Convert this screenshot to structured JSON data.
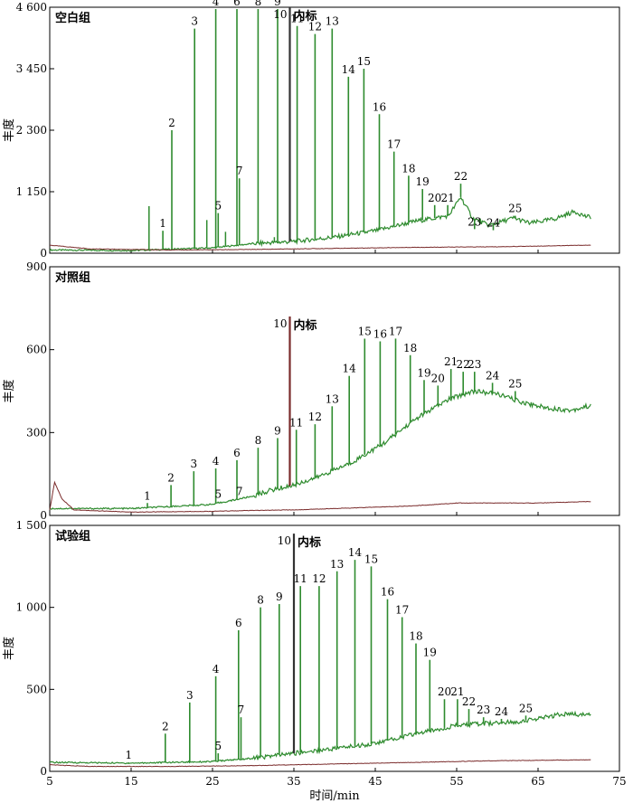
{
  "chart_data": [
    {
      "type": "line",
      "title": "空白组",
      "ylabel": "丰度",
      "xlim": [
        5,
        75
      ],
      "ylim": [
        0,
        4600
      ],
      "yticks": [
        "0",
        "1 150",
        "2 300",
        "3 450",
        "4 600"
      ],
      "yticks_values": [
        0,
        1150,
        2300,
        3450,
        4600
      ],
      "internal_standard": {
        "peak_id": "10",
        "label": "内标",
        "x": 34.5,
        "y": 4600
      },
      "peaks": [
        {
          "id": "1",
          "x": 18.9,
          "y": 420
        },
        {
          "id": "2",
          "x": 20.0,
          "y": 2300
        },
        {
          "id": "3",
          "x": 22.8,
          "y": 4200
        },
        {
          "id": "4",
          "x": 25.4,
          "y": 4800
        },
        {
          "id": "5",
          "x": 25.7,
          "y": 750
        },
        {
          "id": "6",
          "x": 28.0,
          "y": 4850
        },
        {
          "id": "7",
          "x": 28.3,
          "y": 1400
        },
        {
          "id": "8",
          "x": 30.6,
          "y": 4650
        },
        {
          "id": "9",
          "x": 33.0,
          "y": 4700
        },
        {
          "id": "11",
          "x": 35.4,
          "y": 4250
        },
        {
          "id": "12",
          "x": 37.6,
          "y": 4100
        },
        {
          "id": "13",
          "x": 39.7,
          "y": 4200
        },
        {
          "id": "14",
          "x": 41.7,
          "y": 3300
        },
        {
          "id": "15",
          "x": 43.6,
          "y": 3450
        },
        {
          "id": "16",
          "x": 45.5,
          "y": 2600
        },
        {
          "id": "17",
          "x": 47.3,
          "y": 1900
        },
        {
          "id": "18",
          "x": 49.1,
          "y": 1450
        },
        {
          "id": "19",
          "x": 50.8,
          "y": 1200
        },
        {
          "id": "20",
          "x": 52.3,
          "y": 900
        },
        {
          "id": "21",
          "x": 53.9,
          "y": 900
        },
        {
          "id": "22",
          "x": 55.5,
          "y": 1300
        },
        {
          "id": "23",
          "x": 57.2,
          "y": 450
        },
        {
          "id": "24",
          "x": 59.5,
          "y": 430
        },
        {
          "id": "25",
          "x": 62.2,
          "y": 700
        }
      ],
      "extra_peaks": [
        {
          "x": 17.2,
          "y": 880
        },
        {
          "x": 24.3,
          "y": 620
        },
        {
          "x": 26.6,
          "y": 400
        },
        {
          "x": 32.6,
          "y": 300
        }
      ],
      "series": [
        {
          "color": "#2e8b2e",
          "baseline": [
            [
              5,
              60
            ],
            [
              15,
              50
            ],
            [
              25,
              100
            ],
            [
              30,
              180
            ],
            [
              35,
              220
            ],
            [
              40,
              300
            ],
            [
              45,
              420
            ],
            [
              50,
              600
            ],
            [
              54,
              700
            ],
            [
              55.5,
              1050
            ],
            [
              57,
              650
            ],
            [
              59,
              520
            ],
            [
              62,
              660
            ],
            [
              64,
              560
            ],
            [
              67,
              640
            ],
            [
              69.5,
              780
            ],
            [
              71,
              680
            ]
          ]
        },
        {
          "color": "#7a2b2b",
          "baseline": [
            [
              5,
              150
            ],
            [
              10,
              80
            ],
            [
              20,
              60
            ],
            [
              30,
              70
            ],
            [
              40,
              90
            ],
            [
              50,
              110
            ],
            [
              60,
              120
            ],
            [
              71,
              150
            ]
          ]
        }
      ]
    },
    {
      "type": "line",
      "title": "对照组",
      "ylabel": "丰度",
      "xlim": [
        5,
        75
      ],
      "ylim": [
        0,
        900
      ],
      "yticks": [
        "0",
        "300",
        "600",
        "900"
      ],
      "yticks_values": [
        0,
        300,
        600,
        900
      ],
      "internal_standard": {
        "peak_id": "10",
        "label": "内标",
        "x": 34.5,
        "y": 720
      },
      "peaks": [
        {
          "id": "1",
          "x": 17.0,
          "y": 45
        },
        {
          "id": "2",
          "x": 19.9,
          "y": 110
        },
        {
          "id": "3",
          "x": 22.7,
          "y": 160
        },
        {
          "id": "4",
          "x": 25.4,
          "y": 170
        },
        {
          "id": "5",
          "x": 25.7,
          "y": 50
        },
        {
          "id": "6",
          "x": 28.0,
          "y": 200
        },
        {
          "id": "7",
          "x": 28.3,
          "y": 60
        },
        {
          "id": "8",
          "x": 30.6,
          "y": 245
        },
        {
          "id": "9",
          "x": 33.0,
          "y": 280
        },
        {
          "id": "11",
          "x": 35.3,
          "y": 310
        },
        {
          "id": "12",
          "x": 37.6,
          "y": 330
        },
        {
          "id": "13",
          "x": 39.7,
          "y": 395
        },
        {
          "id": "14",
          "x": 41.8,
          "y": 505
        },
        {
          "id": "15",
          "x": 43.7,
          "y": 640
        },
        {
          "id": "16",
          "x": 45.6,
          "y": 630
        },
        {
          "id": "17",
          "x": 47.5,
          "y": 640
        },
        {
          "id": "18",
          "x": 49.3,
          "y": 580
        },
        {
          "id": "19",
          "x": 51.0,
          "y": 490
        },
        {
          "id": "20",
          "x": 52.7,
          "y": 470
        },
        {
          "id": "21",
          "x": 54.3,
          "y": 530
        },
        {
          "id": "22",
          "x": 55.8,
          "y": 520
        },
        {
          "id": "23",
          "x": 57.2,
          "y": 520
        },
        {
          "id": "24",
          "x": 59.4,
          "y": 480
        },
        {
          "id": "25",
          "x": 62.2,
          "y": 450
        }
      ],
      "extra_peaks": [],
      "series": [
        {
          "color": "#2e8b2e",
          "baseline": [
            [
              5,
              25
            ],
            [
              15,
              25
            ],
            [
              25,
              40
            ],
            [
              30,
              70
            ],
            [
              32,
              90
            ],
            [
              35,
              110
            ],
            [
              38,
              140
            ],
            [
              42,
              190
            ],
            [
              46,
              260
            ],
            [
              50,
              350
            ],
            [
              54,
              420
            ],
            [
              57,
              450
            ],
            [
              60,
              440
            ],
            [
              63,
              410
            ],
            [
              66,
              390
            ],
            [
              69,
              380
            ],
            [
              71,
              395
            ]
          ]
        },
        {
          "color": "#7a2b2b",
          "baseline": [
            [
              5,
              20
            ],
            [
              5.6,
              120
            ],
            [
              6.5,
              60
            ],
            [
              8,
              20
            ],
            [
              15,
              12
            ],
            [
              25,
              15
            ],
            [
              30,
              18
            ],
            [
              35,
              20
            ],
            [
              40,
              25
            ],
            [
              45,
              30
            ],
            [
              50,
              35
            ],
            [
              55,
              45
            ],
            [
              60,
              45
            ],
            [
              65,
              45
            ],
            [
              71,
              50
            ]
          ]
        }
      ]
    },
    {
      "type": "line",
      "title": "试验组",
      "ylabel": "丰度",
      "xlabel": "时间/min",
      "xlim": [
        5,
        75
      ],
      "ylim": [
        0,
        1500
      ],
      "xticks": [
        "5",
        "15",
        "25",
        "35",
        "45",
        "55",
        "65",
        "75"
      ],
      "xticks_values": [
        5,
        15,
        25,
        35,
        45,
        55,
        65,
        75
      ],
      "yticks": [
        "0",
        "500",
        "1 000",
        "1 500"
      ],
      "yticks_values": [
        0,
        500,
        1000,
        1500
      ],
      "internal_standard": {
        "peak_id": "10",
        "label": "内标",
        "x": 35.0,
        "y": 1450
      },
      "peaks": [
        {
          "id": "1",
          "x": 14.7,
          "y": 55
        },
        {
          "id": "2",
          "x": 19.2,
          "y": 230
        },
        {
          "id": "3",
          "x": 22.2,
          "y": 420
        },
        {
          "id": "4",
          "x": 25.4,
          "y": 580
        },
        {
          "id": "5",
          "x": 25.7,
          "y": 110
        },
        {
          "id": "6",
          "x": 28.2,
          "y": 860
        },
        {
          "id": "7",
          "x": 28.5,
          "y": 330
        },
        {
          "id": "8",
          "x": 30.9,
          "y": 1000
        },
        {
          "id": "9",
          "x": 33.2,
          "y": 1020
        },
        {
          "id": "11",
          "x": 35.8,
          "y": 1130
        },
        {
          "id": "12",
          "x": 38.1,
          "y": 1130
        },
        {
          "id": "13",
          "x": 40.3,
          "y": 1220
        },
        {
          "id": "14",
          "x": 42.5,
          "y": 1290
        },
        {
          "id": "15",
          "x": 44.5,
          "y": 1250
        },
        {
          "id": "16",
          "x": 46.5,
          "y": 1050
        },
        {
          "id": "17",
          "x": 48.3,
          "y": 940
        },
        {
          "id": "18",
          "x": 50.0,
          "y": 780
        },
        {
          "id": "19",
          "x": 51.7,
          "y": 680
        },
        {
          "id": "20",
          "x": 53.5,
          "y": 440
        },
        {
          "id": "21",
          "x": 55.1,
          "y": 440
        },
        {
          "id": "22",
          "x": 56.5,
          "y": 380
        },
        {
          "id": "23",
          "x": 58.3,
          "y": 330
        },
        {
          "id": "24",
          "x": 60.5,
          "y": 320
        },
        {
          "id": "25",
          "x": 63.5,
          "y": 340
        }
      ],
      "extra_peaks": [],
      "series": [
        {
          "color": "#2e8b2e",
          "baseline": [
            [
              5,
              55
            ],
            [
              15,
              50
            ],
            [
              25,
              60
            ],
            [
              30,
              80
            ],
            [
              35,
              110
            ],
            [
              40,
              140
            ],
            [
              45,
              170
            ],
            [
              50,
              230
            ],
            [
              55,
              280
            ],
            [
              58,
              290
            ],
            [
              62,
              300
            ],
            [
              65,
              320
            ],
            [
              68,
              350
            ],
            [
              71,
              345
            ]
          ]
        },
        {
          "color": "#7a2b2b",
          "baseline": [
            [
              5,
              40
            ],
            [
              10,
              30
            ],
            [
              20,
              30
            ],
            [
              30,
              35
            ],
            [
              40,
              45
            ],
            [
              50,
              55
            ],
            [
              60,
              65
            ],
            [
              71,
              70
            ]
          ]
        }
      ]
    }
  ]
}
